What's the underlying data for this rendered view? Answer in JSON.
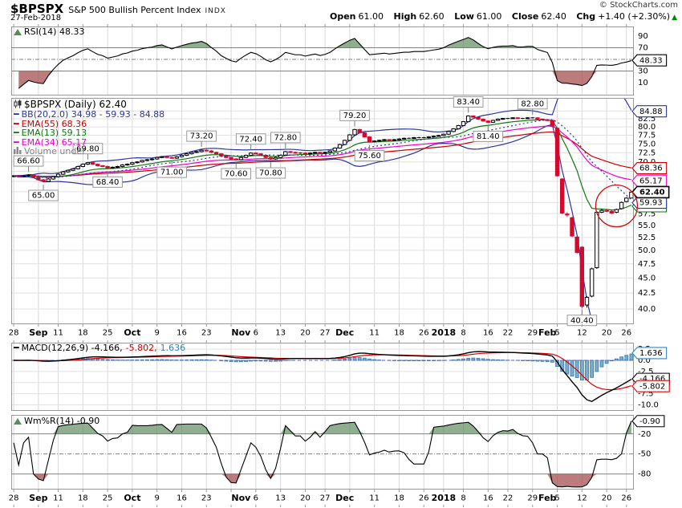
{
  "header": {
    "symbol": "$BPSPX",
    "name": "S&P 500 Bullish Percent Index",
    "exchange": "INDX",
    "date": "27-Feb-2018",
    "copyright": "© StockCharts.com",
    "quote": {
      "open_label": "Open",
      "open": "61.00",
      "high_label": "High",
      "high": "62.60",
      "low_label": "Low",
      "low": "61.00",
      "close_label": "Close",
      "close": "62.40",
      "chg_label": "Chg",
      "chg": "+1.40 (+2.30%)",
      "arrow": "▲"
    }
  },
  "legends": {
    "rsi": "RSI(14) 48.33",
    "main_title": "$BPSPX (Daily) 62.40",
    "bb": "BB(20,2.0) 34.98 - 59.93 - 84.88",
    "ema55": "EMA(55) 68.36",
    "ema13": "EMA(13) 59.13",
    "ema34": "EMA(34) 65.17",
    "volume": "Volume undef",
    "macd_main": "MACD(12,26,9) -4.166,",
    "macd_signal": "-5.802,",
    "macd_hist": "1.636",
    "wpr": "Wm%R(14) -0.90"
  },
  "colors": {
    "bb": "#2b35a0",
    "ema55": "#cc0000",
    "ema13": "#0b7a0b",
    "ema34": "#ee00cc",
    "candle_down": "#d20a2e",
    "macd_line": "#000000",
    "macd_signal": "#dd0000",
    "macd_hist_fill": "#74aed4",
    "macd_hist_edge": "#41779f",
    "macd_blue": "#2e86c1",
    "zero_line": "#4466cc",
    "up_green": "#008800",
    "fill_green": "rgba(85,130,85,0.65)",
    "fill_red": "rgba(165,80,80,0.75)",
    "grid": "#d9d9d9",
    "ref": "#808080",
    "border": "#999999",
    "anno_border": "#999999"
  },
  "rsi_panel": {
    "ticks": [
      "90",
      "70",
      "30",
      "10"
    ],
    "tick_values": [
      90,
      70,
      30,
      10
    ],
    "overbought": 70,
    "oversold": 30,
    "mid": 50,
    "box": {
      "text": "48.33",
      "value": 48.33
    }
  },
  "main_panel": {
    "ticks": [
      "82.5",
      "80.0",
      "77.5",
      "75.0",
      "72.5",
      "70.0",
      "67.5",
      "65.0",
      "62.5",
      "60.0",
      "57.5",
      "55.0",
      "52.5",
      "50.0",
      "47.5",
      "45.0",
      "42.5",
      "40.0"
    ],
    "tick_values": [
      82.5,
      80,
      77.5,
      75,
      72.5,
      70,
      67.5,
      65,
      62.5,
      60,
      57.5,
      55,
      52.5,
      50,
      47.5,
      45,
      42.5,
      40
    ],
    "boxes": [
      {
        "text": "84.88",
        "value": 84.88,
        "color": "bb"
      },
      {
        "text": "68.36",
        "value": 68.36,
        "color": "ema55"
      },
      {
        "text": "65.17",
        "value": 65.17,
        "color": "ema34"
      },
      {
        "text": "59.13",
        "value": 59.13,
        "color": "ema13"
      },
      {
        "text": "59.93",
        "value": 59.93,
        "color": "bb"
      },
      {
        "text": "62.40",
        "value": 62.4,
        "color": "close",
        "bold": true
      }
    ]
  },
  "macd_panel": {
    "ticks": [
      "2.5",
      "0.0",
      "-2.5",
      "-7.5",
      "-10.0"
    ],
    "tick_values": [
      2.5,
      0,
      -2.5,
      -7.5,
      -10
    ],
    "grid_values": [
      2.5,
      0,
      -2.5,
      -5,
      -7.5,
      -10
    ],
    "boxes": [
      {
        "text": "1.636",
        "value": 1.636,
        "color": "blue"
      },
      {
        "text": "-4.166",
        "value": -4.166,
        "color": "black"
      },
      {
        "text": "-5.802",
        "value": -5.802,
        "color": "red"
      }
    ]
  },
  "wpr_panel": {
    "ticks": [
      "-20",
      "-50",
      "-80"
    ],
    "tick_values": [
      -20,
      -50,
      -80
    ],
    "overbought": -20,
    "oversold": -80,
    "mid": -50,
    "box": {
      "text": "-0.90",
      "value": -0.9
    }
  },
  "xaxis": {
    "weeks": [
      0,
      5,
      9,
      14,
      19,
      24,
      29,
      34,
      39,
      44,
      49,
      54,
      59,
      63,
      68,
      73,
      78,
      83,
      87,
      91,
      96,
      100,
      105,
      110,
      115,
      120,
      124
    ],
    "labels": [
      {
        "t": "28",
        "d": 0,
        "b": 0
      },
      {
        "t": "Sep",
        "d": 5,
        "b": 1
      },
      {
        "t": "11",
        "d": 9,
        "b": 0
      },
      {
        "t": "18",
        "d": 14,
        "b": 0
      },
      {
        "t": "25",
        "d": 19,
        "b": 0
      },
      {
        "t": "Oct",
        "d": 24,
        "b": 1
      },
      {
        "t": "9",
        "d": 29,
        "b": 0
      },
      {
        "t": "16",
        "d": 34,
        "b": 0
      },
      {
        "t": "23",
        "d": 39,
        "b": 0
      },
      {
        "t": "Nov",
        "d": 46,
        "b": 1
      },
      {
        "t": "6",
        "d": 49,
        "b": 0
      },
      {
        "t": "13",
        "d": 54,
        "b": 0
      },
      {
        "t": "20",
        "d": 59,
        "b": 0
      },
      {
        "t": "27",
        "d": 63,
        "b": 0
      },
      {
        "t": "Dec",
        "d": 67,
        "b": 1
      },
      {
        "t": "11",
        "d": 73,
        "b": 0
      },
      {
        "t": "18",
        "d": 78,
        "b": 0
      },
      {
        "t": "26",
        "d": 83,
        "b": 0
      },
      {
        "t": "2018",
        "d": 87,
        "b": 1
      },
      {
        "t": "8",
        "d": 91,
        "b": 0
      },
      {
        "t": "16",
        "d": 96,
        "b": 0
      },
      {
        "t": "22",
        "d": 100,
        "b": 0
      },
      {
        "t": "29",
        "d": 105,
        "b": 0
      },
      {
        "t": "Feb",
        "d": 108,
        "b": 1
      },
      {
        "t": "5",
        "d": 110,
        "b": 0
      },
      {
        "t": "12",
        "d": 115,
        "b": 0
      },
      {
        "t": "20",
        "d": 120,
        "b": 0
      },
      {
        "t": "26",
        "d": 124,
        "b": 0
      }
    ]
  },
  "chart_data": {
    "type": "candlestick",
    "symbol": "$BPSPX",
    "timeframe": "Daily",
    "date_range": "28-Aug-2017 to 27-Feb-2018",
    "ylim": [
      37.8,
      89.3
    ],
    "scale": "log",
    "overlays": [
      {
        "type": "bollinger",
        "period": 20,
        "stdev": 2.0,
        "last": [
          34.98,
          59.93,
          84.88
        ]
      },
      {
        "type": "ema",
        "period": 55,
        "last": 68.36
      },
      {
        "type": "ema",
        "period": 13,
        "last": 59.13
      },
      {
        "type": "ema",
        "period": 34,
        "last": 65.17
      }
    ],
    "indicators": [
      {
        "type": "rsi",
        "period": 14,
        "last": 48.33,
        "range": [
          0,
          100
        ],
        "bands": [
          70,
          30
        ]
      },
      {
        "type": "macd",
        "params": [
          12,
          26,
          9
        ],
        "last": [
          -4.166,
          -5.802,
          1.636
        ]
      },
      {
        "type": "williams_r",
        "period": 14,
        "last": -0.9,
        "range": [
          0,
          -100
        ],
        "bands": [
          -20,
          -80
        ]
      }
    ],
    "annotations": [
      {
        "text": "66.60",
        "day": 3,
        "price": 66.6,
        "side": "above"
      },
      {
        "text": "65.00",
        "day": 6,
        "price": 65.0,
        "side": "below"
      },
      {
        "text": "69.80",
        "day": 15,
        "price": 69.8,
        "side": "above"
      },
      {
        "text": "68.40",
        "day": 19,
        "price": 68.4,
        "side": "below"
      },
      {
        "text": "71.00",
        "day": 32,
        "price": 71.0,
        "side": "below"
      },
      {
        "text": "73.20",
        "day": 38,
        "price": 73.2,
        "side": "above"
      },
      {
        "text": "70.60",
        "day": 45,
        "price": 70.6,
        "side": "below"
      },
      {
        "text": "72.40",
        "day": 48,
        "price": 72.4,
        "side": "above"
      },
      {
        "text": "70.80",
        "day": 52,
        "price": 70.8,
        "side": "below"
      },
      {
        "text": "72.80",
        "day": 55,
        "price": 72.8,
        "side": "above"
      },
      {
        "text": "79.20",
        "day": 69,
        "price": 79.2,
        "side": "above"
      },
      {
        "text": "75.60",
        "day": 72,
        "price": 75.6,
        "side": "below"
      },
      {
        "text": "83.40",
        "day": 92,
        "price": 83.4,
        "side": "above"
      },
      {
        "text": "81.40",
        "day": 96,
        "price": 81.4,
        "side": "below"
      },
      {
        "text": "82.80",
        "day": 105,
        "price": 82.8,
        "side": "above"
      },
      {
        "text": "40.40",
        "day": 115,
        "price": 40.4,
        "side": "below"
      }
    ],
    "ellipse": {
      "day": 122,
      "price": 59.2,
      "rx": 26,
      "ry": 26,
      "color": "#cc1111"
    },
    "ohlc": [
      [
        66.2,
        66.6,
        66.0,
        66.4
      ],
      [
        66.4,
        66.6,
        66.0,
        66.2
      ],
      [
        66.2,
        66.6,
        66.0,
        66.4
      ],
      [
        66.4,
        66.8,
        66.2,
        66.6
      ],
      [
        66.6,
        66.8,
        65.8,
        66.0
      ],
      [
        66.0,
        66.2,
        65.2,
        65.4
      ],
      [
        65.4,
        65.6,
        64.8,
        65.0
      ],
      [
        65.0,
        65.8,
        64.8,
        65.6
      ],
      [
        65.6,
        66.4,
        65.4,
        66.2
      ],
      [
        66.2,
        67.0,
        66.0,
        66.8
      ],
      [
        66.8,
        67.6,
        66.6,
        67.4
      ],
      [
        67.4,
        68.0,
        67.2,
        67.8
      ],
      [
        67.8,
        68.4,
        67.6,
        68.2
      ],
      [
        68.2,
        69.0,
        68.0,
        68.8
      ],
      [
        68.8,
        69.6,
        68.6,
        69.4
      ],
      [
        69.4,
        70.0,
        69.2,
        69.8
      ],
      [
        69.8,
        70.0,
        69.2,
        69.4
      ],
      [
        69.4,
        69.6,
        68.8,
        69.0
      ],
      [
        69.0,
        69.2,
        68.6,
        68.8
      ],
      [
        68.8,
        69.0,
        68.2,
        68.4
      ],
      [
        68.4,
        68.8,
        68.2,
        68.6
      ],
      [
        68.6,
        69.0,
        68.4,
        68.8
      ],
      [
        68.8,
        69.4,
        68.6,
        69.2
      ],
      [
        69.2,
        69.6,
        69.0,
        69.4
      ],
      [
        69.4,
        70.0,
        69.2,
        69.8
      ],
      [
        69.8,
        70.2,
        69.6,
        70.0
      ],
      [
        70.0,
        70.6,
        69.8,
        70.4
      ],
      [
        70.4,
        70.8,
        70.2,
        70.6
      ],
      [
        70.6,
        71.0,
        70.4,
        70.8
      ],
      [
        70.8,
        71.4,
        70.6,
        71.2
      ],
      [
        71.2,
        71.6,
        71.0,
        71.4
      ],
      [
        71.4,
        71.6,
        71.0,
        71.2
      ],
      [
        71.2,
        71.4,
        70.8,
        71.0
      ],
      [
        71.0,
        71.6,
        70.8,
        71.4
      ],
      [
        71.4,
        72.0,
        71.2,
        71.8
      ],
      [
        71.8,
        72.4,
        71.6,
        72.2
      ],
      [
        72.2,
        72.8,
        72.0,
        72.6
      ],
      [
        72.6,
        73.0,
        72.4,
        72.8
      ],
      [
        72.8,
        73.4,
        72.6,
        73.2
      ],
      [
        73.2,
        73.4,
        72.8,
        73.0
      ],
      [
        73.0,
        73.2,
        72.4,
        72.6
      ],
      [
        72.6,
        72.8,
        72.0,
        72.2
      ],
      [
        72.2,
        72.4,
        71.4,
        71.6
      ],
      [
        71.6,
        71.8,
        71.0,
        71.2
      ],
      [
        71.2,
        71.4,
        70.6,
        70.8
      ],
      [
        70.8,
        71.0,
        70.4,
        70.6
      ],
      [
        70.6,
        71.4,
        70.4,
        71.2
      ],
      [
        71.2,
        72.0,
        71.0,
        71.8
      ],
      [
        71.8,
        72.6,
        71.6,
        72.4
      ],
      [
        72.4,
        72.6,
        72.0,
        72.2
      ],
      [
        72.2,
        72.4,
        71.6,
        71.8
      ],
      [
        71.8,
        72.0,
        71.0,
        71.2
      ],
      [
        71.2,
        71.4,
        70.6,
        70.8
      ],
      [
        70.8,
        71.4,
        70.6,
        71.2
      ],
      [
        71.2,
        72.0,
        71.0,
        71.8
      ],
      [
        71.8,
        73.0,
        71.6,
        72.8
      ],
      [
        72.8,
        73.0,
        72.4,
        72.6
      ],
      [
        72.6,
        72.8,
        72.2,
        72.4
      ],
      [
        72.4,
        72.6,
        72.2,
        72.4
      ],
      [
        72.4,
        72.6,
        72.0,
        72.2
      ],
      [
        72.2,
        72.6,
        72.0,
        72.4
      ],
      [
        72.4,
        72.8,
        72.2,
        72.6
      ],
      [
        72.6,
        72.8,
        72.2,
        72.4
      ],
      [
        72.4,
        72.8,
        72.2,
        72.6
      ],
      [
        72.6,
        73.2,
        72.4,
        73.0
      ],
      [
        73.0,
        74.0,
        72.8,
        73.8
      ],
      [
        73.8,
        75.0,
        73.6,
        74.8
      ],
      [
        74.8,
        76.2,
        74.6,
        76.0
      ],
      [
        76.0,
        77.8,
        75.8,
        77.6
      ],
      [
        77.6,
        79.4,
        77.4,
        79.2
      ],
      [
        79.2,
        79.4,
        78.0,
        78.2
      ],
      [
        78.2,
        78.4,
        76.8,
        77.0
      ],
      [
        77.0,
        77.2,
        75.4,
        75.6
      ],
      [
        75.6,
        76.0,
        75.4,
        75.8
      ],
      [
        75.8,
        76.2,
        75.6,
        76.0
      ],
      [
        76.0,
        76.4,
        75.8,
        76.2
      ],
      [
        76.2,
        76.4,
        75.8,
        76.0
      ],
      [
        76.0,
        76.4,
        75.8,
        76.2
      ],
      [
        76.2,
        76.6,
        76.0,
        76.4
      ],
      [
        76.4,
        76.8,
        76.2,
        76.6
      ],
      [
        76.6,
        76.8,
        76.4,
        76.6
      ],
      [
        76.6,
        77.0,
        76.4,
        76.8
      ],
      [
        76.8,
        77.0,
        76.6,
        76.8
      ],
      [
        76.8,
        77.0,
        76.6,
        76.8
      ],
      [
        76.8,
        77.2,
        76.6,
        77.0
      ],
      [
        77.0,
        77.4,
        76.8,
        77.2
      ],
      [
        77.2,
        77.6,
        77.0,
        77.4
      ],
      [
        77.4,
        78.0,
        77.2,
        77.8
      ],
      [
        77.8,
        78.8,
        77.6,
        78.6
      ],
      [
        78.6,
        79.6,
        78.4,
        79.4
      ],
      [
        79.4,
        80.6,
        79.2,
        80.4
      ],
      [
        80.4,
        81.8,
        80.2,
        81.6
      ],
      [
        81.6,
        83.6,
        81.4,
        83.4
      ],
      [
        83.4,
        83.6,
        82.8,
        83.0
      ],
      [
        83.0,
        83.2,
        82.2,
        82.4
      ],
      [
        82.4,
        82.6,
        81.6,
        81.8
      ],
      [
        81.8,
        82.0,
        81.2,
        81.4
      ],
      [
        81.4,
        82.2,
        81.2,
        82.0
      ],
      [
        82.0,
        82.6,
        81.8,
        82.4
      ],
      [
        82.4,
        82.8,
        82.2,
        82.6
      ],
      [
        82.6,
        82.8,
        82.4,
        82.6
      ],
      [
        82.6,
        83.0,
        82.4,
        82.8
      ],
      [
        82.8,
        83.0,
        82.4,
        82.6
      ],
      [
        82.6,
        82.8,
        82.4,
        82.6
      ],
      [
        82.6,
        83.0,
        82.4,
        82.8
      ],
      [
        82.8,
        83.0,
        82.6,
        82.8
      ],
      [
        82.8,
        83.0,
        82.2,
        82.4
      ],
      [
        82.4,
        82.6,
        82.0,
        82.2
      ],
      [
        82.2,
        82.4,
        81.8,
        82.0
      ],
      [
        82.0,
        82.2,
        80.0,
        80.2
      ],
      [
        79.6,
        79.8,
        66.2,
        66.4
      ],
      [
        65.6,
        65.8,
        57.4,
        57.6
      ],
      [
        57.4,
        57.8,
        56.8,
        57.2
      ],
      [
        56.6,
        56.8,
        52.6,
        52.8
      ],
      [
        52.6,
        52.8,
        49.4,
        49.6
      ],
      [
        50.6,
        50.8,
        40.1,
        40.4
      ],
      [
        40.6,
        42.0,
        40.2,
        41.8
      ],
      [
        42.0,
        46.8,
        41.8,
        46.6
      ],
      [
        46.8,
        58.0,
        46.6,
        57.8
      ],
      [
        57.8,
        58.6,
        57.6,
        58.2
      ],
      [
        58.2,
        58.4,
        57.8,
        58.0
      ],
      [
        58.0,
        58.2,
        57.4,
        57.6
      ],
      [
        57.8,
        58.6,
        57.6,
        58.4
      ],
      [
        58.6,
        60.2,
        58.4,
        60.0
      ],
      [
        60.2,
        61.2,
        60.0,
        61.0
      ],
      [
        61.0,
        62.6,
        61.0,
        62.4
      ]
    ]
  }
}
